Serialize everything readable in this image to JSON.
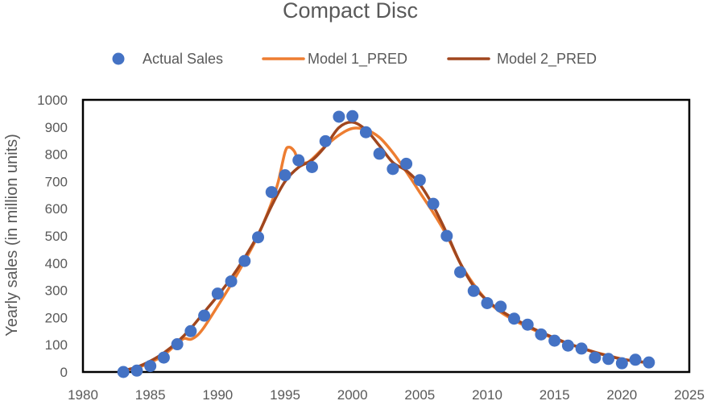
{
  "chart_data": {
    "type": "scatter",
    "title": "Compact Disc",
    "xlabel": "",
    "ylabel": "Yearly sales (in million units)",
    "xlim": [
      1980,
      2025
    ],
    "ylim": [
      0,
      1000
    ],
    "x_ticks": [
      "1980",
      "1985",
      "1990",
      "1995",
      "2000",
      "2005",
      "2010",
      "2015",
      "2020",
      "2025"
    ],
    "y_ticks": [
      "0",
      "100",
      "200",
      "300",
      "400",
      "500",
      "600",
      "700",
      "800",
      "900",
      "1000"
    ],
    "grid": false,
    "legend_position": "top",
    "series": [
      {
        "name": "Actual Sales",
        "kind": "scatter",
        "color": "#4472c4",
        "x": [
          1983,
          1984,
          1985,
          1986,
          1987,
          1988,
          1989,
          1990,
          1991,
          1992,
          1993,
          1994,
          1995,
          1996,
          1997,
          1998,
          1999,
          2000,
          2001,
          2002,
          2003,
          2004,
          2005,
          2006,
          2007,
          2008,
          2009,
          2010,
          2011,
          2012,
          2013,
          2014,
          2015,
          2016,
          2017,
          2018,
          2019,
          2020,
          2021,
          2022
        ],
        "y": [
          0,
          5,
          22,
          53,
          102,
          150,
          207,
          288,
          333,
          408,
          495,
          661,
          723,
          778,
          753,
          848,
          938,
          940,
          881,
          802,
          746,
          765,
          705,
          618,
          500,
          367,
          298,
          253,
          240,
          196,
          174,
          138,
          115,
          97,
          86,
          53,
          48,
          32,
          45,
          35
        ]
      },
      {
        "name": "Model 1_PRED",
        "kind": "line",
        "color": "#ed7d31",
        "x": [
          1983,
          1984,
          1985,
          1986,
          1987,
          1987.5,
          1988,
          1988.5,
          1989,
          1990,
          1991,
          1992,
          1993,
          1994,
          1994.5,
          1995,
          1995.3,
          1995.7,
          1996,
          1996.5,
          1997,
          1998,
          1999,
          2000,
          2001,
          2002,
          2003,
          2004,
          2005,
          2006,
          2007,
          2008,
          2009,
          2010,
          2011,
          2012,
          2013,
          2014,
          2015,
          2016,
          2017,
          2018,
          2019,
          2020,
          2021,
          2022
        ],
        "y": [
          5,
          15,
          35,
          62,
          105,
          123,
          120,
          135,
          165,
          242,
          322,
          408,
          502,
          622,
          700,
          808,
          826,
          810,
          775,
          768,
          782,
          830,
          870,
          895,
          890,
          862,
          806,
          736,
          660,
          585,
          502,
          400,
          322,
          262,
          220,
          190,
          165,
          143,
          122,
          104,
          88,
          73,
          60,
          48,
          40,
          33
        ]
      },
      {
        "name": "Model 2_PRED",
        "kind": "line",
        "color": "#a0461e",
        "x": [
          1983,
          1984,
          1985,
          1986,
          1987,
          1988,
          1989,
          1990,
          1991,
          1992,
          1993,
          1994,
          1995,
          1996,
          1997,
          1998,
          1999,
          2000,
          2001,
          2002,
          2003,
          2004,
          2005,
          2006,
          2007,
          2008,
          2009,
          2010,
          2011,
          2012,
          2013,
          2014,
          2015,
          2016,
          2017,
          2018,
          2019,
          2020,
          2021,
          2022
        ],
        "y": [
          5,
          18,
          40,
          70,
          110,
          160,
          220,
          280,
          345,
          420,
          505,
          610,
          700,
          752,
          778,
          830,
          898,
          918,
          890,
          832,
          770,
          740,
          690,
          610,
          510,
          400,
          315,
          262,
          226,
          196,
          170,
          146,
          125,
          105,
          88,
          72,
          59,
          47,
          40,
          34
        ]
      }
    ]
  }
}
